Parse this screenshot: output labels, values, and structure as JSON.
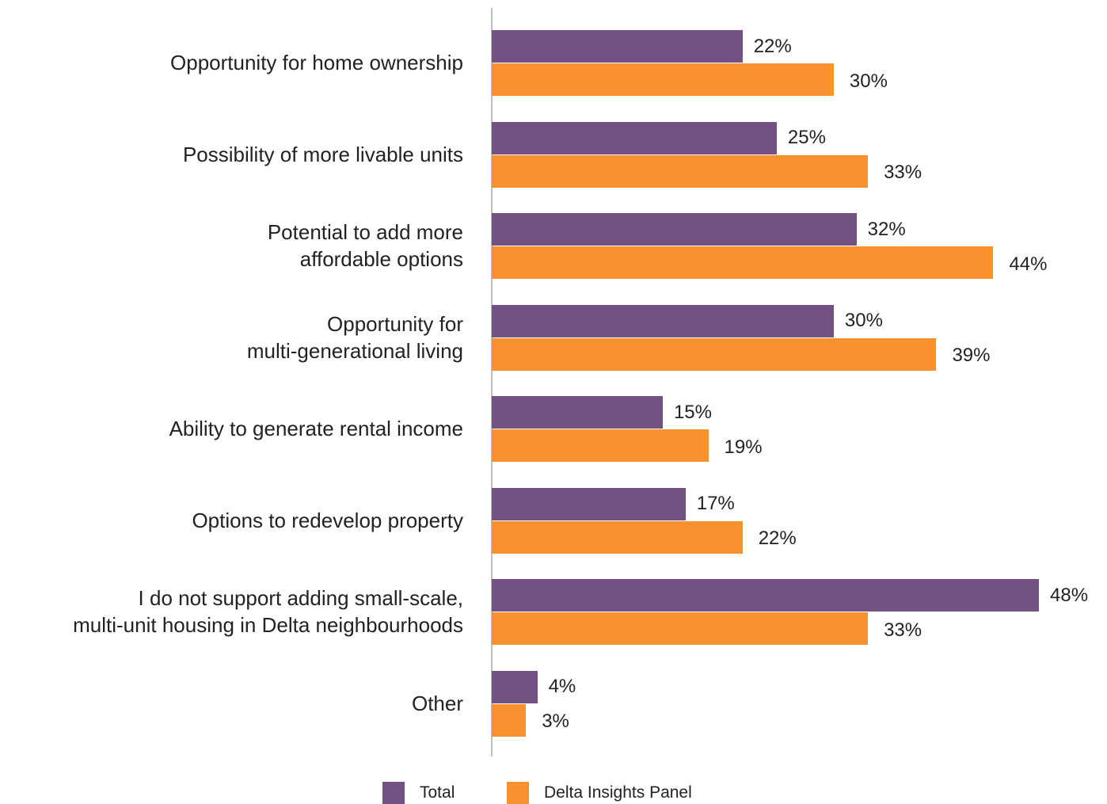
{
  "chart_data": {
    "type": "bar",
    "orientation": "horizontal",
    "categories": [
      "Opportunity for home ownership",
      "Possibility of more livable units",
      "Potential to add more\naffordable options",
      "Opportunity for\nmulti-generational living",
      "Ability to generate rental income",
      "Options to redevelop property",
      "I do not support adding small-scale,\nmulti-unit housing in Delta neighbourhoods",
      "Other"
    ],
    "series": [
      {
        "name": "Total",
        "color": "#735283",
        "values": [
          22,
          25,
          32,
          30,
          15,
          17,
          48,
          4
        ],
        "value_labels": [
          "22%",
          "25%",
          "32%",
          "30%",
          "15%",
          "17%",
          "48%",
          "4%"
        ]
      },
      {
        "name": "Delta Insights Panel",
        "color": "#f7922e",
        "values": [
          30,
          33,
          44,
          39,
          19,
          22,
          33,
          3
        ],
        "value_labels": [
          "30%",
          "33%",
          "44%",
          "39%",
          "19%",
          "22%",
          "33%",
          "3%"
        ]
      }
    ],
    "legend": "bottom"
  }
}
